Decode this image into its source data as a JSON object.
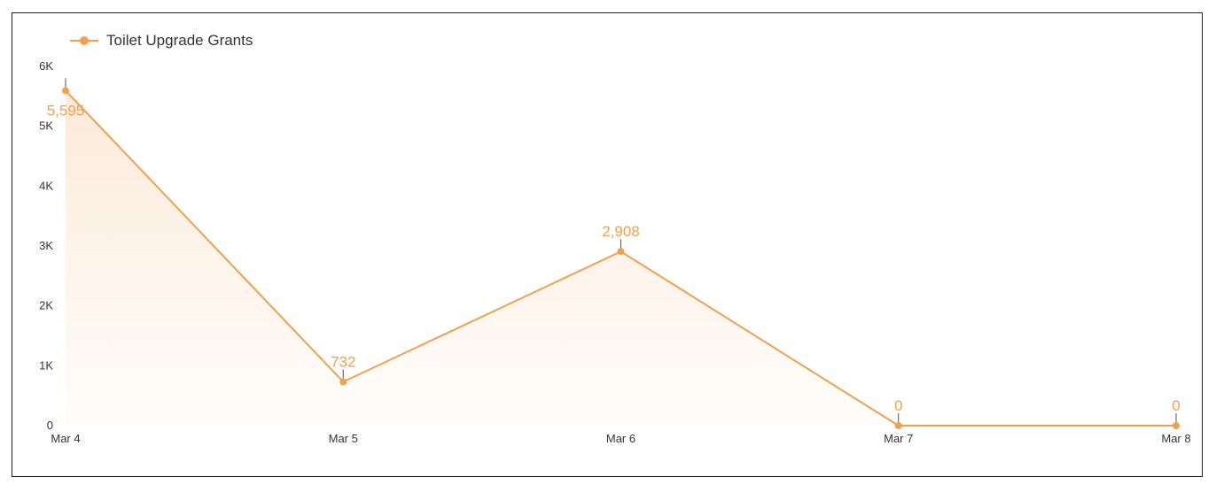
{
  "colors": {
    "series": "#F0A150",
    "axis_text": "#333333",
    "frame": "#222222"
  },
  "chart_data": {
    "type": "area",
    "x": [
      "Mar 4",
      "Mar 5",
      "Mar 6",
      "Mar 7",
      "Mar 8"
    ],
    "series": [
      {
        "name": "Toilet Upgrade Grants",
        "values": [
          5595,
          732,
          2908,
          0,
          0
        ],
        "data_labels": [
          "5,595",
          "732",
          "2,908",
          "0",
          "0"
        ]
      }
    ],
    "ylim": [
      0,
      6000
    ],
    "yticks": [
      0,
      1000,
      2000,
      3000,
      4000,
      5000,
      6000
    ],
    "ytick_labels": [
      "0",
      "1K",
      "2K",
      "3K",
      "4K",
      "5K",
      "6K"
    ],
    "grid": false,
    "legend_position": "top-left",
    "xlabel": "",
    "ylabel": ""
  }
}
